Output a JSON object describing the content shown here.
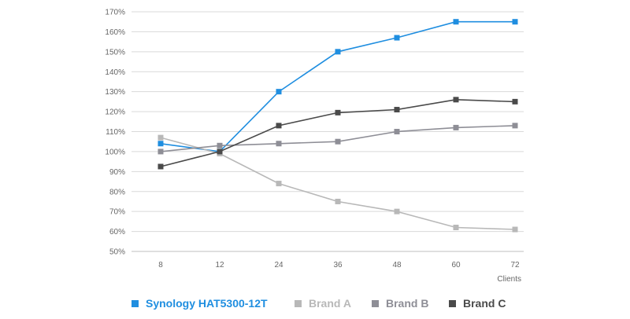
{
  "chart_data": {
    "type": "line",
    "x": [
      8,
      12,
      24,
      36,
      48,
      60,
      72
    ],
    "xlabel": "Clients",
    "ylabel": "",
    "ylim": [
      50,
      170
    ],
    "yticks": [
      50,
      60,
      70,
      80,
      90,
      100,
      110,
      120,
      130,
      140,
      150,
      160,
      170
    ],
    "ytick_suffix": "%",
    "grid": true,
    "legend_position": "bottom",
    "series": [
      {
        "name": "Synology HAT5300-12T",
        "color": "#1f8ee0",
        "values": [
          104,
          100,
          130,
          150,
          157,
          165,
          165
        ]
      },
      {
        "name": "Brand A",
        "color": "#b8b8b8",
        "values": [
          107,
          99,
          84,
          75,
          70,
          62,
          61
        ]
      },
      {
        "name": "Brand B",
        "color": "#8e8e96",
        "values": [
          100,
          103,
          104,
          105,
          110,
          112,
          113
        ]
      },
      {
        "name": "Brand C",
        "color": "#4a4a4a",
        "values": [
          92.5,
          100,
          113,
          119.5,
          121,
          126,
          125
        ]
      }
    ]
  }
}
